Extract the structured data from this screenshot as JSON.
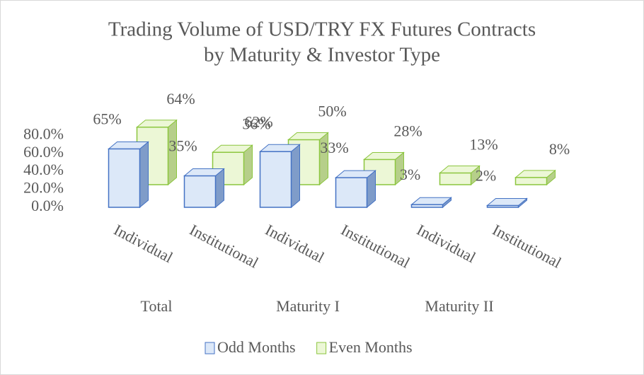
{
  "chart_data": {
    "type": "bar3d",
    "title": "Trading Volume of USD/TRY FX Futures Contracts",
    "subtitle": "by Maturity & Investor Type",
    "categories": [
      "Individual",
      "Institutional",
      "Individual",
      "Institutional",
      "Individual",
      "Institutional"
    ],
    "category_groups": [
      "Total",
      "Maturity I",
      "Maturity II"
    ],
    "series": [
      {
        "name": "Odd Months",
        "color": "#dce8f8",
        "stroke": "#4472c4",
        "values": [
          65,
          35,
          62,
          33,
          3,
          2
        ],
        "value_labels": [
          "65%",
          "35%",
          "62%",
          "33%",
          "3%",
          "2%"
        ]
      },
      {
        "name": "Even Months",
        "color": "#ecf7d6",
        "stroke": "#8cc63f",
        "values": [
          64,
          36,
          50,
          28,
          13,
          8
        ],
        "value_labels": [
          "64%",
          "36%",
          "50%",
          "28%",
          "13%",
          "8%"
        ]
      }
    ],
    "ylim": [
      0,
      80
    ],
    "yticks": [
      {
        "value": 0,
        "label": "0.0%"
      },
      {
        "value": 20,
        "label": "20.0%"
      },
      {
        "value": 40,
        "label": "40.0%"
      },
      {
        "value": 60,
        "label": "60.0%"
      },
      {
        "value": 80,
        "label": "80.0%"
      }
    ],
    "legend": "bottom"
  }
}
